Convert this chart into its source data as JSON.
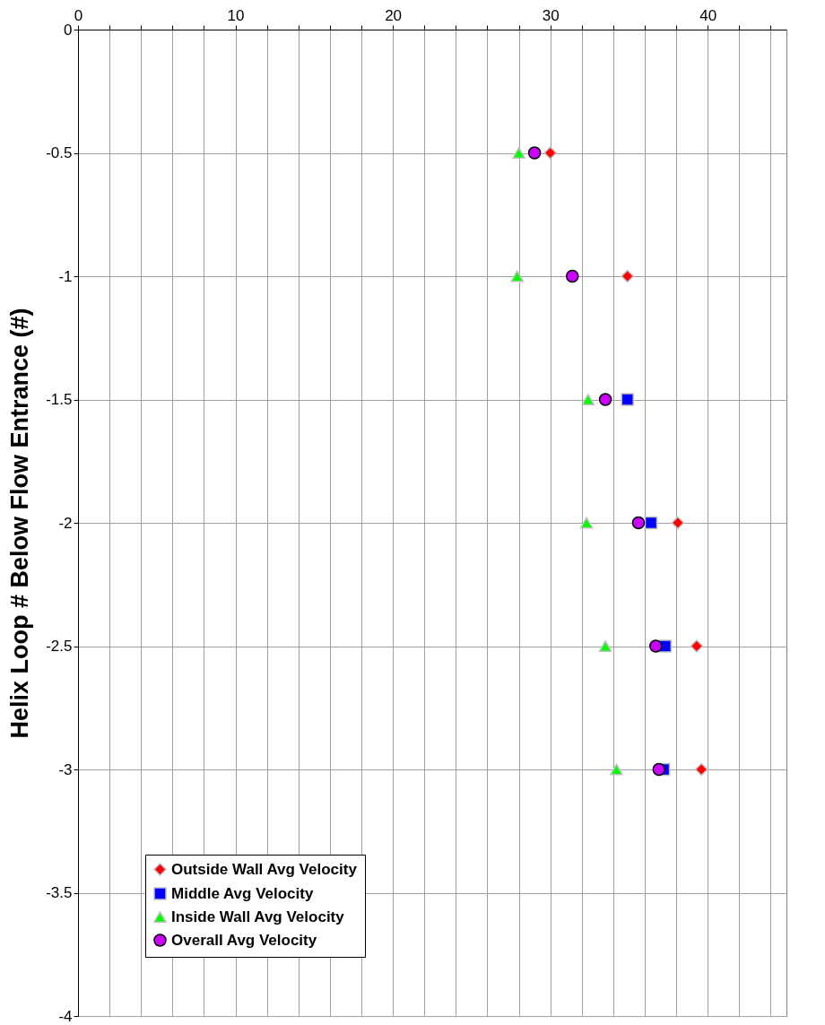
{
  "chart_data": {
    "type": "scatter",
    "ylabel": "Helix Loop # Below Flow Entrance (#)",
    "xlim": [
      0,
      45
    ],
    "xticks": [
      0,
      {
        "value": 2,
        "label": null
      },
      {
        "value": 4,
        "label": null
      },
      {
        "value": 6,
        "label": null
      },
      {
        "value": 8,
        "label": null
      },
      10,
      {
        "value": 12,
        "label": null
      },
      {
        "value": 14,
        "label": null
      },
      {
        "value": 16,
        "label": null
      },
      {
        "value": 18,
        "label": null
      },
      20,
      {
        "value": 22,
        "label": null
      },
      {
        "value": 24,
        "label": null
      },
      {
        "value": 26,
        "label": null
      },
      {
        "value": 28,
        "label": null
      },
      30,
      {
        "value": 32,
        "label": null
      },
      {
        "value": 34,
        "label": null
      },
      {
        "value": 36,
        "label": null
      },
      {
        "value": 38,
        "label": null
      },
      40,
      {
        "value": 42,
        "label": null
      },
      {
        "value": 44,
        "label": null
      }
    ],
    "ylim": [
      -4,
      0
    ],
    "yticks": [
      0,
      -0.5,
      -1,
      -1.5,
      -2,
      -2.5,
      -3,
      -3.5,
      -4
    ],
    "grid": true,
    "legend": "bottom left",
    "series": [
      {
        "name": "Outside Wall Avg Velocity",
        "color": "#ff0000",
        "marker": "diamond",
        "x": [
          30.0,
          34.9,
          38.1,
          39.3,
          39.6
        ],
        "values": [
          -0.5,
          -1,
          -2,
          -2.5,
          -3
        ]
      },
      {
        "name": "Middle Avg Velocity",
        "color": "#0000ff",
        "marker": "square",
        "x": [
          34.9,
          36.4,
          37.3,
          37.2
        ],
        "values": [
          -1.5,
          -2,
          -2.5,
          -3
        ]
      },
      {
        "name": "Inside Wall Avg Velocity",
        "color": "#00ff00",
        "marker": "triangle",
        "x": [
          28.0,
          27.9,
          32.4,
          32.3,
          33.5,
          34.2
        ],
        "values": [
          -0.5,
          -1,
          -1.5,
          -2,
          -2.5,
          -3
        ]
      },
      {
        "name": "Overall Avg Velocity",
        "color": "#cc00ff",
        "marker": "circle",
        "x": [
          29.0,
          31.4,
          33.5,
          35.6,
          36.7,
          36.9
        ],
        "values": [
          -0.5,
          -1,
          -1.5,
          -2,
          -2.5,
          -3
        ]
      }
    ]
  }
}
